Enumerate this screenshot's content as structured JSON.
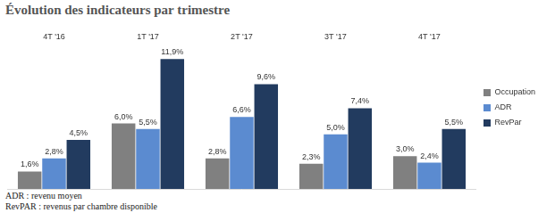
{
  "chart_data": {
    "type": "bar",
    "title": "Évolution des indicateurs par trimestre",
    "categories": [
      "4T '16",
      "1T '17",
      "2T '17",
      "3T '17",
      "4T '17"
    ],
    "series": [
      {
        "name": "Occupation",
        "color": "#808080",
        "values": [
          1.6,
          6.0,
          2.8,
          2.3,
          3.0
        ],
        "value_labels": [
          "1,6%",
          "6,0%",
          "2,8%",
          "2,3%",
          "3,0%"
        ]
      },
      {
        "name": "ADR",
        "color": "#5b8bd0",
        "values": [
          2.8,
          5.5,
          6.6,
          5.0,
          2.4
        ],
        "value_labels": [
          "2,8%",
          "5,5%",
          "6,6%",
          "5,0%",
          "2,4%"
        ]
      },
      {
        "name": "RevPar",
        "color": "#223b5f",
        "values": [
          4.5,
          11.9,
          9.6,
          7.4,
          5.5
        ],
        "value_labels": [
          "4,5%",
          "11,9%",
          "9,6%",
          "7,4%",
          "5,5%"
        ]
      }
    ],
    "ylim": [
      0,
      13
    ],
    "grid": false,
    "tick_labels": "x",
    "legend": "right",
    "data_labels": true,
    "annotations": [
      "ADR : revenu moyen",
      "RevPAR : revenus par chambre disponible"
    ]
  }
}
